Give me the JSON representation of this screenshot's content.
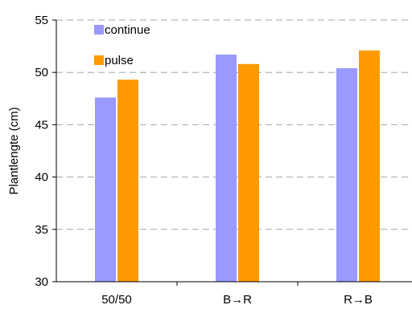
{
  "chart_data": {
    "type": "bar",
    "title": "",
    "xlabel": "",
    "ylabel": "Plantlengte (cm)",
    "categories": [
      "50/50",
      "B→R",
      "R→B"
    ],
    "series": [
      {
        "name": "continue",
        "color": "#9999ff",
        "values": [
          47.6,
          51.7,
          50.4
        ]
      },
      {
        "name": "pulse",
        "color": "#ff9900",
        "values": [
          49.3,
          50.8,
          52.1
        ]
      }
    ],
    "ylim": [
      30,
      55
    ],
    "yticks": [
      "30",
      "35",
      "40",
      "45",
      "50",
      "55"
    ],
    "grid": "horizontal dashed",
    "legend_position": "top-left"
  }
}
